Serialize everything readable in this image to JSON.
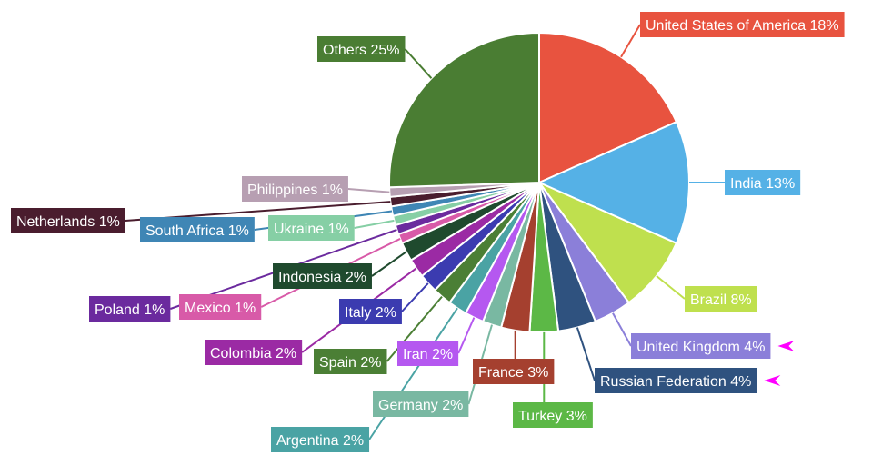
{
  "chart_data": {
    "type": "pie",
    "title": "",
    "slices": [
      {
        "label": "United States of America 18%",
        "value": 18,
        "color": "#e8533f"
      },
      {
        "label": "India 13%",
        "value": 13,
        "color": "#55b1e6"
      },
      {
        "label": "Brazil 8%",
        "value": 8,
        "color": "#bfe04e"
      },
      {
        "label": "United Kingdom 4%",
        "value": 4,
        "color": "#8b7fd9"
      },
      {
        "label": "Russian Federation 4%",
        "value": 4,
        "color": "#2f527f"
      },
      {
        "label": "Turkey 3%",
        "value": 3,
        "color": "#5cb846"
      },
      {
        "label": "France 3%",
        "value": 3,
        "color": "#a5402f"
      },
      {
        "label": "Germany 2%",
        "value": 2,
        "color": "#79b8a2"
      },
      {
        "label": "Iran 2%",
        "value": 2,
        "color": "#b558f0"
      },
      {
        "label": "Argentina 2%",
        "value": 2,
        "color": "#4aa3a4"
      },
      {
        "label": "Spain 2%",
        "value": 2,
        "color": "#4b7f35"
      },
      {
        "label": "Italy 2%",
        "value": 2,
        "color": "#3b3bb0"
      },
      {
        "label": "Colombia 2%",
        "value": 2,
        "color": "#9b2aa4"
      },
      {
        "label": "Indonesia 2%",
        "value": 2,
        "color": "#1f4a2e"
      },
      {
        "label": "Mexico 1%",
        "value": 1,
        "color": "#d85aa8"
      },
      {
        "label": "Poland 1%",
        "value": 1,
        "color": "#6b2a9e"
      },
      {
        "label": "Ukraine 1%",
        "value": 1,
        "color": "#86cfa5"
      },
      {
        "label": "South Africa 1%",
        "value": 1,
        "color": "#3f86b5"
      },
      {
        "label": "Netherlands 1%",
        "value": 1,
        "color": "#4a1d2e"
      },
      {
        "label": "Philippines 1%",
        "value": 1,
        "color": "#b79fb2"
      },
      {
        "label": "Others 25%",
        "value": 25,
        "color": "#4a7d33"
      }
    ],
    "legend": "none",
    "arrow_color": "#ff00ff"
  }
}
